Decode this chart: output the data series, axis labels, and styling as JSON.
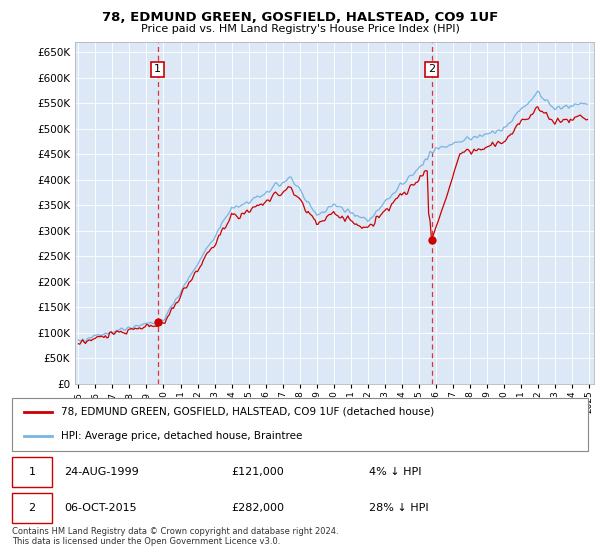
{
  "title": "78, EDMUND GREEN, GOSFIELD, HALSTEAD, CO9 1UF",
  "subtitle": "Price paid vs. HM Land Registry's House Price Index (HPI)",
  "ylabel_ticks": [
    0,
    50000,
    100000,
    150000,
    200000,
    250000,
    300000,
    350000,
    400000,
    450000,
    500000,
    550000,
    600000,
    650000
  ],
  "ylim": [
    0,
    670000
  ],
  "xlim_start": 1994.8,
  "xlim_end": 2025.3,
  "hpi_color": "#7ab4e0",
  "price_color": "#cc0000",
  "plot_bg_color": "#dce8f5",
  "grid_color": "#ffffff",
  "transaction1_year": 1999.65,
  "transaction1_price": 121000,
  "transaction2_year": 2015.76,
  "transaction2_price": 282000,
  "legend_label_red": "78, EDMUND GREEN, GOSFIELD, HALSTEAD, CO9 1UF (detached house)",
  "legend_label_blue": "HPI: Average price, detached house, Braintree",
  "note1_date": "24-AUG-1999",
  "note1_price": "£121,000",
  "note1_pct": "4% ↓ HPI",
  "note2_date": "06-OCT-2015",
  "note2_price": "£282,000",
  "note2_pct": "28% ↓ HPI",
  "footer": "Contains HM Land Registry data © Crown copyright and database right 2024.\nThis data is licensed under the Open Government Licence v3.0."
}
